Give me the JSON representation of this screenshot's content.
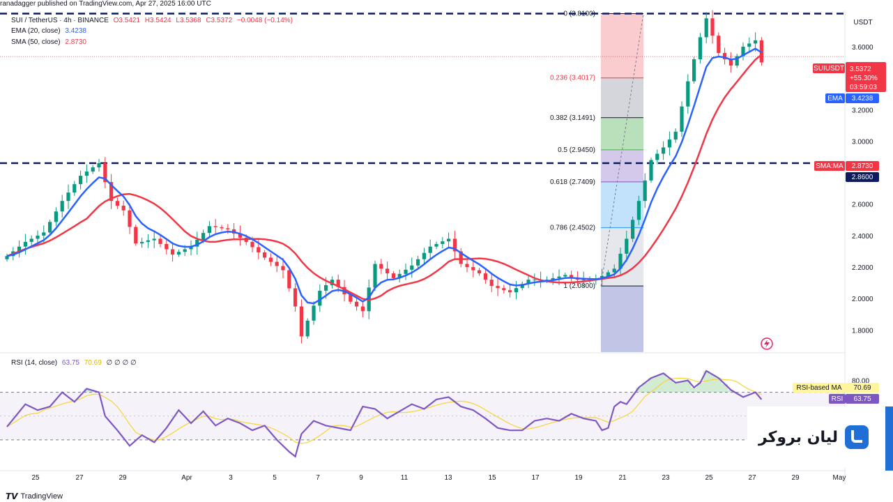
{
  "header": {
    "publisher": "ranadagger published on TradingView.com, Apr 27, 2025 16:00 UTC"
  },
  "legend": {
    "symbol": "SUI / TetherUS · 4h · BINANCE",
    "o": "O3.5421",
    "h": "H3.5424",
    "l": "L3.5368",
    "c": "C3.5372",
    "chg": "−0.0048 (−0.14%)",
    "ema_label": "EMA (20, close)",
    "ema_value": "3.4238",
    "sma_label": "SMA (50, close)",
    "sma_value": "2.8730",
    "rsi_label": "RSI (14, close)",
    "rsi_value": "63.75",
    "rsi_ma_value": "70.69",
    "rsi_extra": "∅ ∅ ∅ ∅"
  },
  "price_axis": {
    "currency": "USDT",
    "ticks": [
      "3.6000",
      "3.2000",
      "3.0000",
      "2.6000",
      "2.4000",
      "2.2000",
      "2.0000",
      "1.8000"
    ]
  },
  "price_tags": {
    "symbol_tag": "SUIUSDT",
    "price": "3.5372",
    "change": "+55.30%",
    "countdown": "03:59:03",
    "ema_tag": "EMA",
    "ema": "3.4238",
    "sma_tag": "SMA:MA",
    "sma": "2.8730",
    "level": "2.8600"
  },
  "rsi_axis": {
    "ticks": [
      "80.00"
    ],
    "ma_tag": "RSI-based MA",
    "ma": "70.69",
    "rsi_tag": "RSI",
    "rsi": "63.75"
  },
  "fib_levels": [
    {
      "label": "0 (3.8100)",
      "price": 3.81
    },
    {
      "label": "0.236 (3.4017)",
      "price": 3.4017
    },
    {
      "label": "0.382 (3.1491)",
      "price": 3.1491
    },
    {
      "label": "0.5 (2.9450)",
      "price": 2.945
    },
    {
      "label": "0.618 (2.7409)",
      "price": 2.7409
    },
    {
      "label": "0.786 (2.4502)",
      "price": 2.4502
    },
    {
      "label": "1 (2.0800)",
      "price": 2.08
    }
  ],
  "colors": {
    "up": "#089981",
    "down": "#f23645",
    "ema": "#2962ff",
    "sma": "#f23645",
    "rsi": "#7e57c2",
    "rsi_ma": "#f7d534"
  },
  "chart_data": {
    "type": "candlestick",
    "title": "SUI / TetherUS · 4h · BINANCE",
    "x_ticks": [
      "25",
      "27",
      "29",
      "Apr",
      "3",
      "5",
      "7",
      "9",
      "11",
      "13",
      "15",
      "17",
      "19",
      "21",
      "23",
      "25",
      "27",
      "29",
      "May"
    ],
    "y_unit": "USDT",
    "ylim": [
      1.66,
      3.83
    ],
    "resistance_lines": [
      3.81,
      2.86
    ],
    "last_price": 3.5372,
    "ema20_last": 3.4238,
    "sma50_last": 2.873,
    "close_path": [
      [
        0,
        2.27
      ],
      [
        3,
        2.36
      ],
      [
        6,
        2.42
      ],
      [
        9,
        2.62
      ],
      [
        12,
        2.78
      ],
      [
        15,
        2.86
      ],
      [
        16,
        2.74
      ],
      [
        17,
        2.62
      ],
      [
        19,
        2.56
      ],
      [
        21,
        2.35
      ],
      [
        24,
        2.38
      ],
      [
        27,
        2.28
      ],
      [
        30,
        2.33
      ],
      [
        33,
        2.46
      ],
      [
        36,
        2.44
      ],
      [
        39,
        2.36
      ],
      [
        42,
        2.26
      ],
      [
        45,
        2.18
      ],
      [
        47,
        1.95
      ],
      [
        48,
        1.76
      ],
      [
        49,
        1.86
      ],
      [
        51,
        2.05
      ],
      [
        53,
        2.12
      ],
      [
        56,
        1.98
      ],
      [
        58,
        1.92
      ],
      [
        60,
        2.22
      ],
      [
        63,
        2.13
      ],
      [
        66,
        2.21
      ],
      [
        69,
        2.33
      ],
      [
        72,
        2.38
      ],
      [
        74,
        2.22
      ],
      [
        77,
        2.16
      ],
      [
        79,
        2.08
      ],
      [
        82,
        2.04
      ],
      [
        85,
        2.12
      ],
      [
        88,
        2.12
      ],
      [
        91,
        2.15
      ],
      [
        93,
        2.12
      ],
      [
        96,
        2.12
      ],
      [
        99,
        2.19
      ],
      [
        101,
        2.38
      ],
      [
        103,
        2.62
      ],
      [
        105,
        2.88
      ],
      [
        107,
        2.96
      ],
      [
        109,
        3.06
      ],
      [
        111,
        3.38
      ],
      [
        113,
        3.66
      ],
      [
        114,
        3.78
      ],
      [
        116,
        3.56
      ],
      [
        118,
        3.48
      ],
      [
        120,
        3.6
      ],
      [
        122,
        3.64
      ],
      [
        123,
        3.5
      ]
    ],
    "rsi_ylim": [
      10,
      95
    ],
    "rsi_levels": [
      70,
      30
    ],
    "rsi_path": [
      [
        0,
        41
      ],
      [
        3,
        60
      ],
      [
        5,
        55
      ],
      [
        7,
        58
      ],
      [
        9,
        70
      ],
      [
        11,
        62
      ],
      [
        13,
        73
      ],
      [
        15,
        70
      ],
      [
        16,
        50
      ],
      [
        18,
        38
      ],
      [
        20,
        25
      ],
      [
        22,
        34
      ],
      [
        24,
        28
      ],
      [
        26,
        40
      ],
      [
        28,
        55
      ],
      [
        30,
        44
      ],
      [
        32,
        54
      ],
      [
        34,
        42
      ],
      [
        36,
        48
      ],
      [
        38,
        44
      ],
      [
        40,
        38
      ],
      [
        42,
        42
      ],
      [
        44,
        30
      ],
      [
        46,
        20
      ],
      [
        47,
        16
      ],
      [
        48,
        35
      ],
      [
        50,
        46
      ],
      [
        52,
        42
      ],
      [
        54,
        40
      ],
      [
        56,
        38
      ],
      [
        58,
        58
      ],
      [
        60,
        56
      ],
      [
        62,
        48
      ],
      [
        64,
        54
      ],
      [
        66,
        60
      ],
      [
        68,
        56
      ],
      [
        70,
        64
      ],
      [
        72,
        66
      ],
      [
        74,
        58
      ],
      [
        76,
        55
      ],
      [
        78,
        48
      ],
      [
        80,
        40
      ],
      [
        82,
        38
      ],
      [
        84,
        38
      ],
      [
        86,
        46
      ],
      [
        88,
        48
      ],
      [
        90,
        46
      ],
      [
        92,
        52
      ],
      [
        94,
        48
      ],
      [
        96,
        46
      ],
      [
        97,
        38
      ],
      [
        98,
        40
      ],
      [
        99,
        58
      ],
      [
        100,
        62
      ],
      [
        101,
        60
      ],
      [
        103,
        74
      ],
      [
        105,
        82
      ],
      [
        107,
        86
      ],
      [
        109,
        78
      ],
      [
        111,
        80
      ],
      [
        112,
        74
      ],
      [
        113,
        78
      ],
      [
        114,
        88
      ],
      [
        116,
        82
      ],
      [
        118,
        72
      ],
      [
        120,
        66
      ],
      [
        122,
        70
      ],
      [
        123,
        64
      ]
    ]
  }
}
